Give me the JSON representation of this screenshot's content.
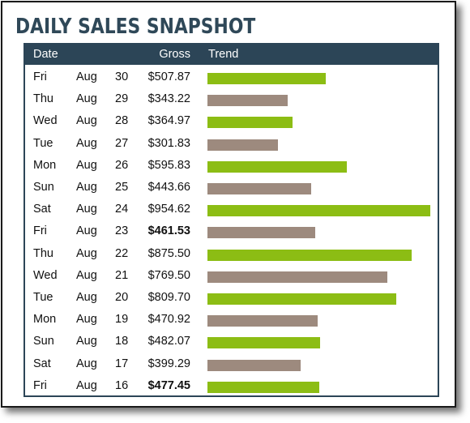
{
  "title": "DAILY SALES SNAPSHOT",
  "colors": {
    "header_bg": "#2c4557",
    "title": "#2f4858",
    "bar_green": "#8cbd14",
    "bar_taupe": "#9d8a7e"
  },
  "chart_data": {
    "type": "table",
    "columns": [
      "Date",
      "Gross",
      "Trend"
    ],
    "xlim": [
      0,
      954.62
    ],
    "rows": [
      {
        "day": "Fri",
        "month": "Aug",
        "date": "30",
        "gross": "$507.87",
        "value": 507.87,
        "bold": false,
        "color": "green"
      },
      {
        "day": "Thu",
        "month": "Aug",
        "date": "29",
        "gross": "$343.22",
        "value": 343.22,
        "bold": false,
        "color": "taupe"
      },
      {
        "day": "Wed",
        "month": "Aug",
        "date": "28",
        "gross": "$364.97",
        "value": 364.97,
        "bold": false,
        "color": "green"
      },
      {
        "day": "Tue",
        "month": "Aug",
        "date": "27",
        "gross": "$301.83",
        "value": 301.83,
        "bold": false,
        "color": "taupe"
      },
      {
        "day": "Mon",
        "month": "Aug",
        "date": "26",
        "gross": "$595.83",
        "value": 595.83,
        "bold": false,
        "color": "green"
      },
      {
        "day": "Sun",
        "month": "Aug",
        "date": "25",
        "gross": "$443.66",
        "value": 443.66,
        "bold": false,
        "color": "taupe"
      },
      {
        "day": "Sat",
        "month": "Aug",
        "date": "24",
        "gross": "$954.62",
        "value": 954.62,
        "bold": false,
        "color": "green"
      },
      {
        "day": "Fri",
        "month": "Aug",
        "date": "23",
        "gross": "$461.53",
        "value": 461.53,
        "bold": true,
        "color": "taupe"
      },
      {
        "day": "Thu",
        "month": "Aug",
        "date": "22",
        "gross": "$875.50",
        "value": 875.5,
        "bold": false,
        "color": "green"
      },
      {
        "day": "Wed",
        "month": "Aug",
        "date": "21",
        "gross": "$769.50",
        "value": 769.5,
        "bold": false,
        "color": "taupe"
      },
      {
        "day": "Tue",
        "month": "Aug",
        "date": "20",
        "gross": "$809.70",
        "value": 809.7,
        "bold": false,
        "color": "green"
      },
      {
        "day": "Mon",
        "month": "Aug",
        "date": "19",
        "gross": "$470.92",
        "value": 470.92,
        "bold": false,
        "color": "taupe"
      },
      {
        "day": "Sun",
        "month": "Aug",
        "date": "18",
        "gross": "$482.07",
        "value": 482.07,
        "bold": false,
        "color": "green"
      },
      {
        "day": "Sat",
        "month": "Aug",
        "date": "17",
        "gross": "$399.29",
        "value": 399.29,
        "bold": false,
        "color": "taupe"
      },
      {
        "day": "Fri",
        "month": "Aug",
        "date": "16",
        "gross": "$477.45",
        "value": 477.45,
        "bold": true,
        "color": "green"
      }
    ]
  }
}
